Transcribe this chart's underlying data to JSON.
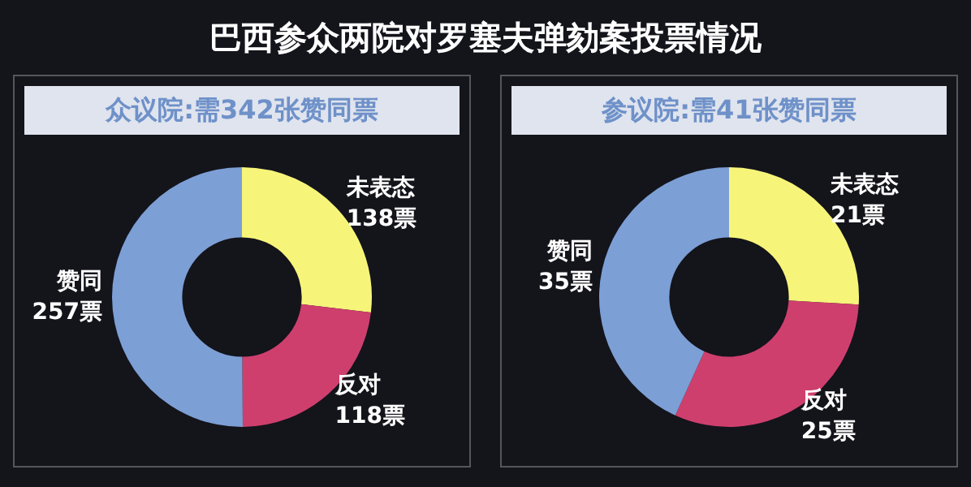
{
  "chart_data": [
    {
      "type": "donut",
      "title": "巴西参众两院对罗塞夫弹劾案投票情况",
      "subtitle": "众议院:需342张赞同票",
      "categories": [
        "未表态",
        "反对",
        "赞同"
      ],
      "values": [
        138,
        118,
        257
      ],
      "value_labels": [
        "138票",
        "118票",
        "257票"
      ],
      "colors": [
        "#f6f57a",
        "#cf3f6e",
        "#7c9fd5"
      ],
      "legend": false
    },
    {
      "type": "donut",
      "subtitle": "参议院:需41张赞同票",
      "categories": [
        "未表态",
        "反对",
        "赞同"
      ],
      "values": [
        21,
        25,
        35
      ],
      "value_labels": [
        "21票",
        "25票",
        "35票"
      ],
      "colors": [
        "#f6f57a",
        "#cf3f6e",
        "#7c9fd5"
      ],
      "legend": false
    }
  ]
}
